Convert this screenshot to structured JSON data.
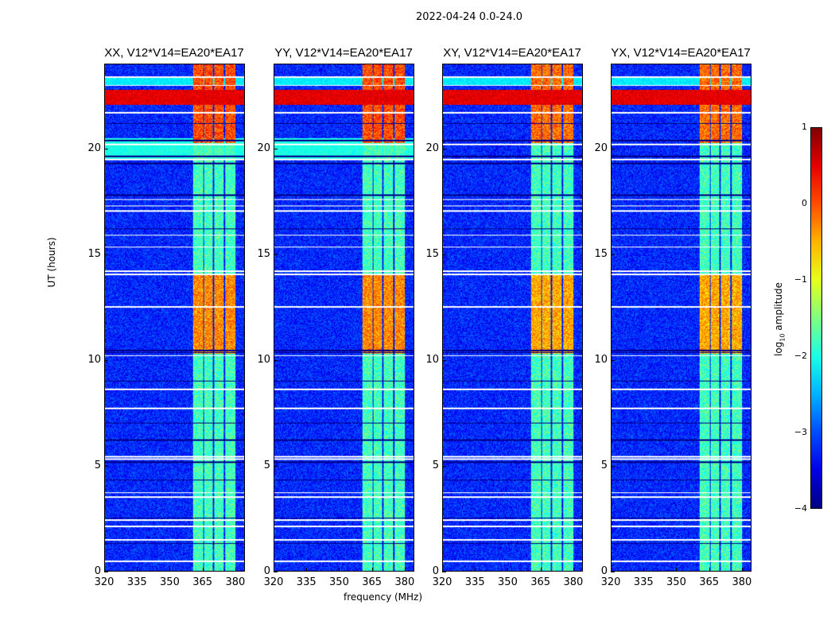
{
  "suptitle": "2022-04-24 0.0-24.0",
  "chart_data": {
    "type": "heatmap",
    "panels": [
      {
        "title": "XX, V12*V14=EA20*EA17"
      },
      {
        "title": "YY, V12*V14=EA20*EA17"
      },
      {
        "title": "XY, V12*V14=EA20*EA17"
      },
      {
        "title": "YX, V12*V14=EA20*EA17"
      }
    ],
    "xlabel": "frequency (MHz)",
    "ylabel": "UT (hours)",
    "xlim": [
      320,
      384.4
    ],
    "ylim": [
      0,
      24
    ],
    "xticks": [
      "320",
      "335",
      "350",
      "365",
      "380"
    ],
    "xtick_values": [
      320,
      335,
      350,
      365,
      380
    ],
    "yticks": [
      "0",
      "5",
      "10",
      "15",
      "20"
    ],
    "ytick_values": [
      0,
      5,
      10,
      15,
      20
    ],
    "colorbar": {
      "label": "log10 amplitude",
      "label_main": "log",
      "label_sub": "10",
      "label_rest": " amplitude",
      "ticks": [
        "1",
        "0",
        "−1",
        "−2",
        "−3",
        "−4"
      ],
      "tick_values": [
        1,
        0,
        -1,
        -2,
        -3,
        -4
      ],
      "range": [
        -4,
        1
      ],
      "colormap": "jet"
    },
    "background_level": -3.2,
    "rfi_subbands_mhz": [
      [
        360.7,
        365.3
      ],
      [
        365.8,
        370.0
      ],
      [
        370.5,
        375.0
      ],
      [
        375.6,
        380.4
      ]
    ],
    "rfi_level": -1.8,
    "rfi_strong_periods_hours": [
      [
        10.3,
        14.0,
        -0.3
      ],
      [
        20.3,
        24.0,
        0.0
      ]
    ],
    "broadband_events_hours": [
      [
        22.1,
        22.8,
        0.5
      ],
      [
        19.5,
        20.5,
        -2.0
      ],
      [
        23.0,
        23.4,
        -2.2
      ]
    ],
    "flagged_rows_hours": [
      0.45,
      1.46,
      2.1,
      2.4,
      3.5,
      3.7,
      5.3,
      5.4,
      7.7,
      8.6,
      10.2,
      12.5,
      14.05,
      14.2,
      15.35,
      15.9,
      17.05,
      17.3,
      17.6,
      19.5,
      20.2,
      21.7,
      23.0,
      23.4
    ],
    "low_rows_hours": [
      1.3,
      2.5,
      4.3,
      5.15,
      6.2,
      7.0,
      9.0,
      10.35,
      10.45,
      16.2,
      17.8,
      19.3,
      19.65,
      20.4,
      21.2
    ]
  }
}
